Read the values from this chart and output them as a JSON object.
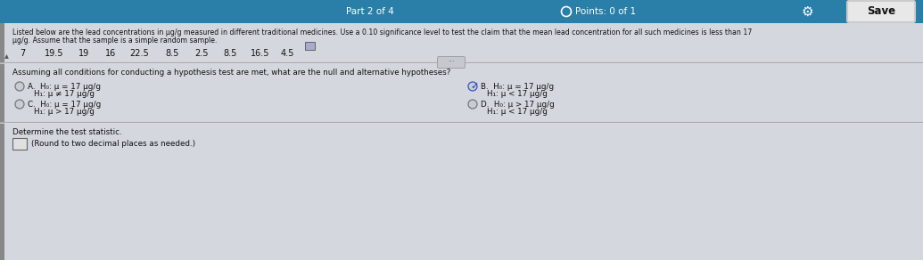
{
  "bg_color": "#c8cdd4",
  "header_bg": "#2a7fa8",
  "header_text": "Part 2 of 4",
  "points_text": "Points: 0 of 1",
  "save_text": "Save",
  "top_text_line1": "Listed below are the lead concentrations in μg/g measured in different traditional medicines. Use a 0.10 significance level to test the claim that the mean lead concentration for all such medicines is less than 17",
  "top_text_line2": "μg/g. Assume that the sample is a simple random sample.",
  "data_values": "7   19.5   19   16   22.5   8.5   2.5   8.5   16.5   4.5",
  "question_text": "Assuming all conditions for conducting a hypothesis test are met, what are the null and alternative hypotheses?",
  "optA_H0": "H₀: μ = 17 μg/g",
  "optA_H1": "H₁: μ ≠ 17 μg/g",
  "optB_H0": "H₀: μ = 17 μg/g",
  "optB_H1": "H₁: μ < 17 μg/g",
  "optC_H0": "H₀: μ = 17 μg/g",
  "optC_H1": "H₁: μ > 17 μg/g",
  "optD_H0": "H₀: μ > 17 μg/g",
  "optD_H1": "H₁: μ < 17 μg/g",
  "determine_text": "Determine the test statistic.",
  "round_text": "(Round to two decimal places as needed.)",
  "text_color": "#111111",
  "header_color": "#ffffff",
  "option_text_color": "#111111",
  "selected_option": "B",
  "checkmark_color": "#2244bb",
  "circle_color": "#888888",
  "divider_color": "#999999",
  "content_bg": "#d4d8de",
  "left_bar_color": "#888888"
}
